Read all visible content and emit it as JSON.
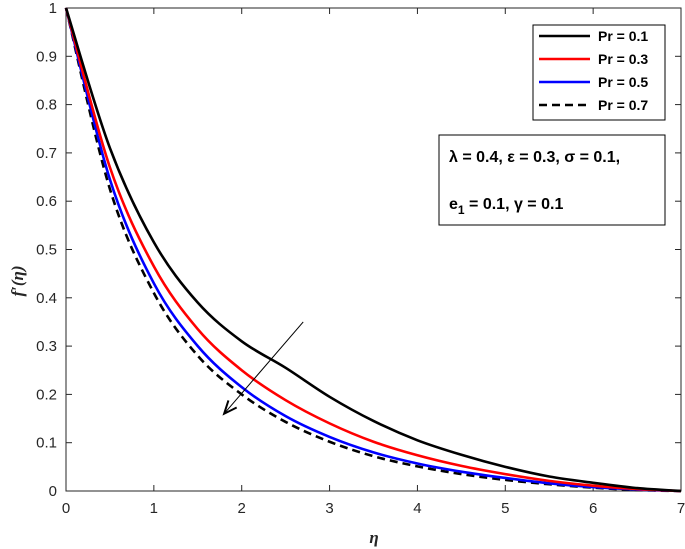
{
  "chart_data": {
    "type": "line",
    "title": "",
    "xlabel": "η",
    "ylabel": "f′(η)",
    "xlim": [
      0,
      7
    ],
    "ylim": [
      0,
      1
    ],
    "xticks": [
      "0",
      "1",
      "2",
      "3",
      "4",
      "5",
      "6",
      "7"
    ],
    "yticks": [
      "0",
      "0.1",
      "0.2",
      "0.3",
      "0.4",
      "0.5",
      "0.6",
      "0.7",
      "0.8",
      "0.9",
      "1"
    ],
    "grid": false,
    "legend_position": "top-right",
    "x": [
      0,
      0.5,
      1,
      1.5,
      2,
      2.5,
      3,
      3.5,
      4,
      4.5,
      5,
      5.5,
      6,
      6.5,
      7
    ],
    "series": [
      {
        "name": "Pr = 0.1",
        "color": "#000000",
        "dash": "solid",
        "values": [
          1.0,
          0.71,
          0.515,
          0.39,
          0.31,
          0.255,
          0.195,
          0.145,
          0.105,
          0.075,
          0.05,
          0.03,
          0.017,
          0.006,
          0.0
        ]
      },
      {
        "name": "Pr = 0.3",
        "color": "#ff0000",
        "dash": "solid",
        "values": [
          1.0,
          0.67,
          0.465,
          0.335,
          0.25,
          0.188,
          0.14,
          0.102,
          0.074,
          0.052,
          0.035,
          0.021,
          0.011,
          0.004,
          0.0
        ]
      },
      {
        "name": "Pr = 0.5",
        "color": "#0000ff",
        "dash": "solid",
        "values": [
          1.0,
          0.645,
          0.43,
          0.3,
          0.215,
          0.155,
          0.112,
          0.08,
          0.057,
          0.04,
          0.027,
          0.016,
          0.008,
          0.003,
          0.0
        ]
      },
      {
        "name": "Pr = 0.7",
        "color": "#000000",
        "dash": "dashed",
        "values": [
          1.0,
          0.625,
          0.41,
          0.28,
          0.2,
          0.143,
          0.102,
          0.072,
          0.051,
          0.035,
          0.023,
          0.014,
          0.007,
          0.002,
          0.0
        ]
      }
    ],
    "annotations": {
      "params_line1": "λ = 0.4, ε = 0.3, σ = 0.1,",
      "params_line2_pre": "e",
      "params_line2_sub": "1",
      "params_line2_post": " = 0.1, γ = 0.1",
      "arrow": {
        "from": [
          2.7,
          0.35
        ],
        "to": [
          1.8,
          0.16
        ],
        "meaning": "increasing Pr"
      }
    }
  }
}
